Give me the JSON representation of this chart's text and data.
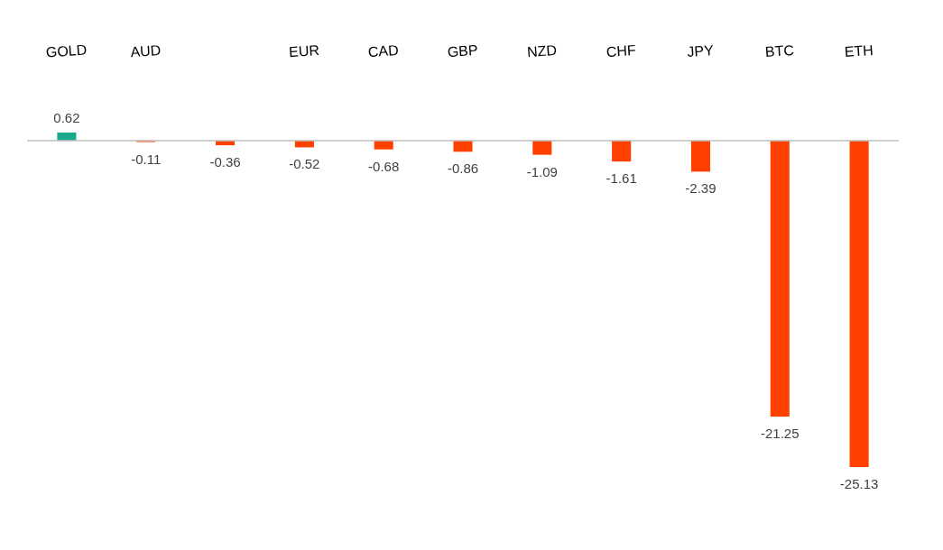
{
  "chart_data": {
    "type": "bar",
    "categories": [
      "GOLD",
      "AUD",
      null,
      "EUR",
      "CAD",
      "GBP",
      "NZD",
      "CHF",
      "JPY",
      "BTC",
      "ETH"
    ],
    "values": [
      0.62,
      -0.11,
      -0.36,
      -0.52,
      -0.68,
      -0.86,
      -1.09,
      -1.61,
      -2.39,
      -21.25,
      -25.13
    ],
    "colors": [
      "#1aa88a",
      "#ff4000",
      "#ff4000",
      "#ff4000",
      "#ff4000",
      "#ff4000",
      "#ff4000",
      "#ff4000",
      "#ff4000",
      "#ff4000",
      "#ff4000"
    ],
    "data_labels": true
  }
}
